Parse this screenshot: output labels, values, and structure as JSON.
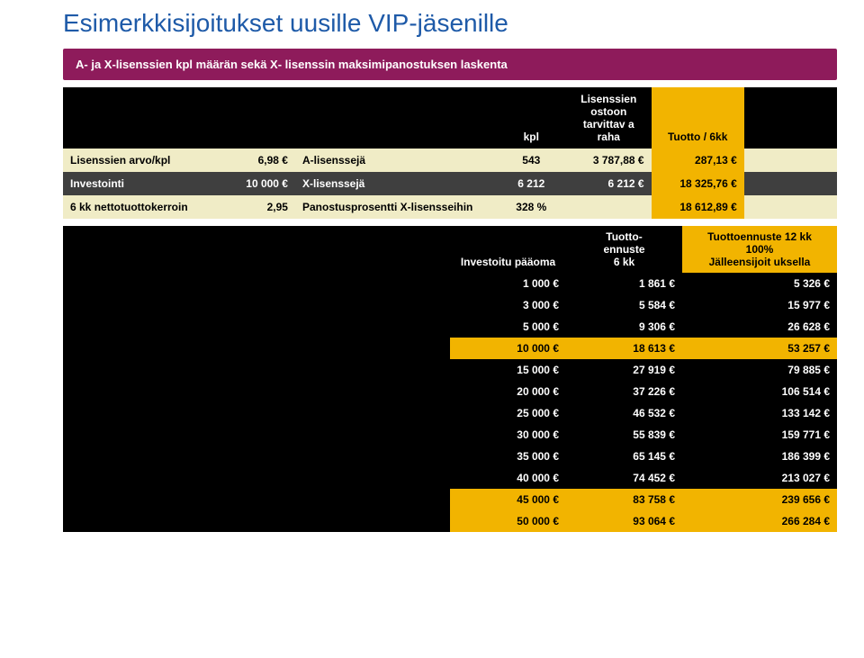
{
  "title": "Esimerkkisijoitukset uusille VIP-jäsenille",
  "banner": "A- ja X-lisenssien kpl määrän sekä X- lisenssin maksimipanostuksen laskenta",
  "t1": {
    "headers": {
      "kpl": "kpl",
      "need": "Lisenssien ostoon tarvittav a raha",
      "yield": "Tuotto / 6kk"
    },
    "rows": [
      {
        "a": "Lisenssien arvo/kpl",
        "b": "6,98 €",
        "c": "A-lisenssejä",
        "d": "543",
        "e": "3 787,88 €",
        "f": "287,13 €",
        "rowStyle": "cream"
      },
      {
        "a": "Investointi",
        "b": "10 000 €",
        "c": "X-lisenssejä",
        "d": "6 212",
        "e": "6 212 €",
        "f": "18 325,76 €",
        "rowStyle": "dkgray"
      },
      {
        "a": "6 kk nettotuottokerroin",
        "b": "2,95",
        "c": "Panostusprosentti X-lisensseihin",
        "d": "328 %",
        "e": "",
        "f": "18 612,89 €",
        "rowStyle": "cream"
      }
    ]
  },
  "t2": {
    "headers": {
      "inv": "Investoitu pääoma",
      "p6": "Tuotto-\nennuste\n6 kk",
      "p12": "Tuottoennuste 12 kk\n100%\nJälleensijoit uksella"
    },
    "rows": [
      {
        "a": "1 000 €",
        "b": "1 861 €",
        "c": "5 326 €",
        "hl": false
      },
      {
        "a": "3 000 €",
        "b": "5 584 €",
        "c": "15 977 €",
        "hl": false
      },
      {
        "a": "5 000 €",
        "b": "9 306 €",
        "c": "26 628 €",
        "hl": false
      },
      {
        "a": "10 000 €",
        "b": "18 613 €",
        "c": "53 257 €",
        "hl": true
      },
      {
        "a": "15 000 €",
        "b": "27 919 €",
        "c": "79 885 €",
        "hl": false
      },
      {
        "a": "20 000 €",
        "b": "37 226 €",
        "c": "106 514 €",
        "hl": false
      },
      {
        "a": "25 000 €",
        "b": "46 532 €",
        "c": "133 142 €",
        "hl": false
      },
      {
        "a": "30 000 €",
        "b": "55 839 €",
        "c": "159 771 €",
        "hl": false
      },
      {
        "a": "35 000 €",
        "b": "65 145 €",
        "c": "186 399 €",
        "hl": false
      },
      {
        "a": "40 000 €",
        "b": "74 452 €",
        "c": "213 027 €",
        "hl": false
      },
      {
        "a": "45 000 €",
        "b": "83 758 €",
        "c": "239 656 €",
        "hl": true
      },
      {
        "a": "50 000 €",
        "b": "93 064 €",
        "c": "266 284 €",
        "hl": true
      }
    ]
  }
}
